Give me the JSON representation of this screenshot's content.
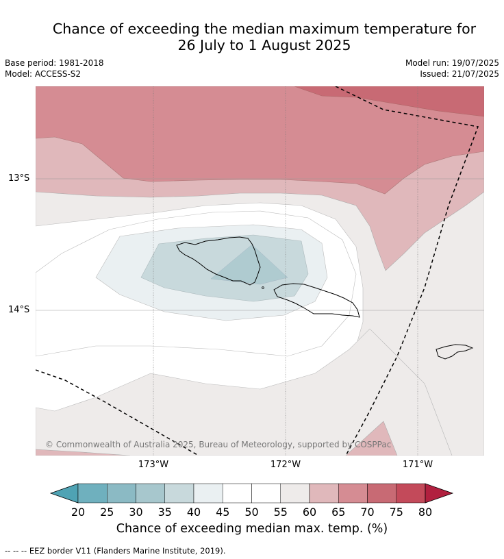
{
  "title": {
    "line1": "Chance of exceeding the median maximum temperature for",
    "line2": "26 July to 1 August 2025"
  },
  "meta": {
    "base_period": "Base period: 1981-2018",
    "model": "Model: ACCESS-S2",
    "model_run": "Model run: 19/07/2025",
    "issued": "Issued: 21/07/2025"
  },
  "map": {
    "lat_labels": [
      "13°S",
      "14°S"
    ],
    "lon_labels": [
      "173°W",
      "172°W",
      "171°W"
    ],
    "copyright": "© Commonwealth of Australia 2025, Bureau of Meteorology, supported by COSPPac",
    "eez_line_style": "dashed"
  },
  "colorbar": {
    "ticks": [
      "20",
      "25",
      "30",
      "35",
      "40",
      "45",
      "50",
      "55",
      "60",
      "65",
      "70",
      "75",
      "80"
    ],
    "colors": [
      "#4fa3b4",
      "#6fb0be",
      "#8bbac4",
      "#a7c7cd",
      "#c8d9dc",
      "#eaf0f2",
      "#ffffff",
      "#ffffff",
      "#eeebea",
      "#e0b8bb",
      "#d58c93",
      "#c86a74",
      "#c34a5a",
      "#b1203f"
    ],
    "label": "Chance of exceeding median max. temp. (%)"
  },
  "footer": "--  --  -- EEZ border V11 (Flanders Marine Institute, 2019)."
}
